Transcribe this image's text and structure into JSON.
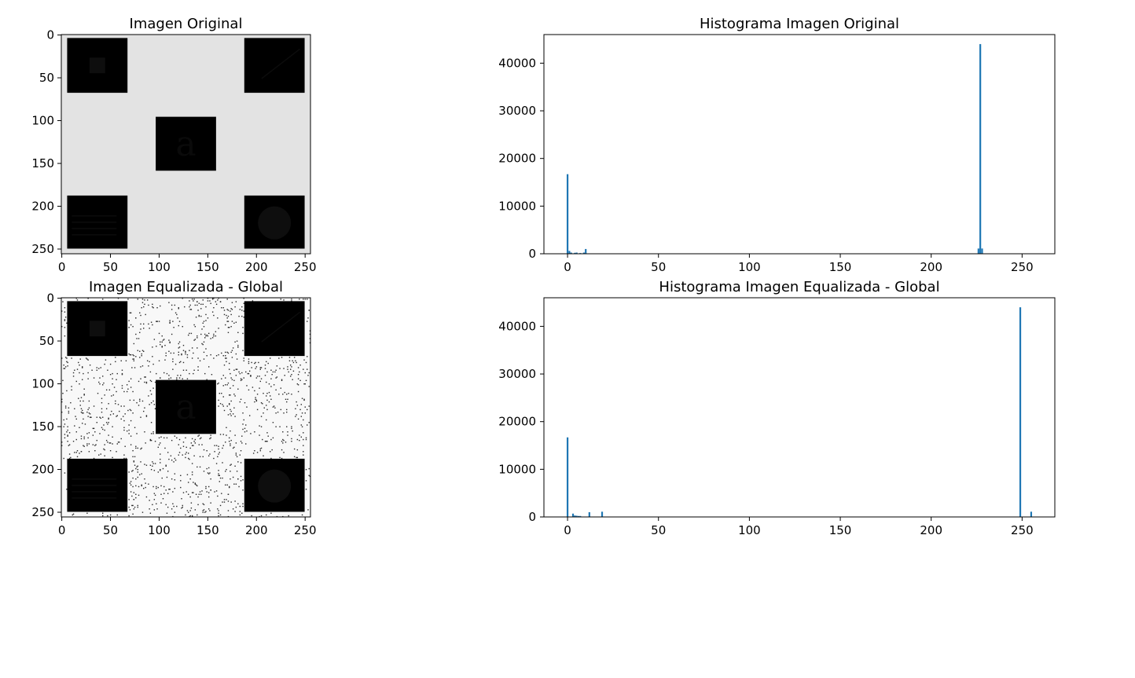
{
  "chart_data": [
    {
      "type": "image",
      "title": "Imagen Original",
      "image_size": [
        256,
        256
      ],
      "background_gray": 227,
      "noise_specks": false,
      "xticks": [
        0,
        50,
        100,
        150,
        200,
        250
      ],
      "yticks": [
        0,
        50,
        100,
        150,
        200,
        250
      ],
      "squares": [
        {
          "name": "top-left",
          "x": [
            6,
            68
          ],
          "y": [
            4,
            68
          ],
          "fill_gray": 0,
          "detail": "small square",
          "detail_gray": 14
        },
        {
          "name": "top-right",
          "x": [
            188,
            250
          ],
          "y": [
            4,
            68
          ],
          "fill_gray": 0,
          "detail": "diagonal line",
          "detail_gray": 12
        },
        {
          "name": "center",
          "x": [
            97,
            159
          ],
          "y": [
            96,
            159
          ],
          "fill_gray": 0,
          "detail": "letter a",
          "detail_gray": 10
        },
        {
          "name": "bottom-left",
          "x": [
            6,
            68
          ],
          "y": [
            188,
            250
          ],
          "fill_gray": 0,
          "detail": "horizontal lines",
          "detail_gray": 14
        },
        {
          "name": "bottom-right",
          "x": [
            188,
            250
          ],
          "y": [
            188,
            250
          ],
          "fill_gray": 0,
          "detail": "circle",
          "detail_gray": 14
        }
      ]
    },
    {
      "type": "bar",
      "title": "Histograma Imagen Original",
      "xlim": [
        -13,
        268
      ],
      "ylim": [
        0,
        46000
      ],
      "xticks": [
        0,
        50,
        100,
        150,
        200,
        250
      ],
      "yticks": [
        0,
        10000,
        20000,
        30000,
        40000
      ],
      "bar_color": "#1f77b4",
      "x": [
        0,
        1,
        2,
        4,
        5,
        7,
        9,
        10,
        226,
        227,
        228
      ],
      "values": [
        16700,
        600,
        250,
        200,
        250,
        150,
        250,
        1000,
        1100,
        44000,
        1100
      ]
    },
    {
      "type": "image",
      "title": "Imagen Equalizada - Global",
      "image_size": [
        256,
        256
      ],
      "background_gray": 248,
      "noise_specks": true,
      "noise_gray": 40,
      "xticks": [
        0,
        50,
        100,
        150,
        200,
        250
      ],
      "yticks": [
        0,
        50,
        100,
        150,
        200,
        250
      ],
      "squares": [
        {
          "name": "top-left",
          "x": [
            6,
            68
          ],
          "y": [
            4,
            68
          ],
          "fill_gray": 0,
          "detail": "small square",
          "detail_gray": 14
        },
        {
          "name": "top-right",
          "x": [
            188,
            250
          ],
          "y": [
            4,
            68
          ],
          "fill_gray": 0,
          "detail": "diagonal line",
          "detail_gray": 12
        },
        {
          "name": "center",
          "x": [
            97,
            159
          ],
          "y": [
            96,
            159
          ],
          "fill_gray": 0,
          "detail": "letter a",
          "detail_gray": 10
        },
        {
          "name": "bottom-left",
          "x": [
            6,
            68
          ],
          "y": [
            188,
            250
          ],
          "fill_gray": 0,
          "detail": "horizontal lines",
          "detail_gray": 14
        },
        {
          "name": "bottom-right",
          "x": [
            188,
            250
          ],
          "y": [
            188,
            250
          ],
          "fill_gray": 0,
          "detail": "circle",
          "detail_gray": 14
        }
      ]
    },
    {
      "type": "bar",
      "title": "Histograma Imagen Equalizada - Global",
      "xlim": [
        -13,
        268
      ],
      "ylim": [
        0,
        46000
      ],
      "xticks": [
        0,
        50,
        100,
        150,
        200,
        250
      ],
      "yticks": [
        0,
        10000,
        20000,
        30000,
        40000
      ],
      "bar_color": "#1f77b4",
      "x": [
        0,
        3,
        4,
        5,
        6,
        7,
        12,
        19,
        249,
        255
      ],
      "values": [
        16700,
        700,
        300,
        250,
        200,
        200,
        1000,
        1100,
        44000,
        1100
      ]
    }
  ]
}
